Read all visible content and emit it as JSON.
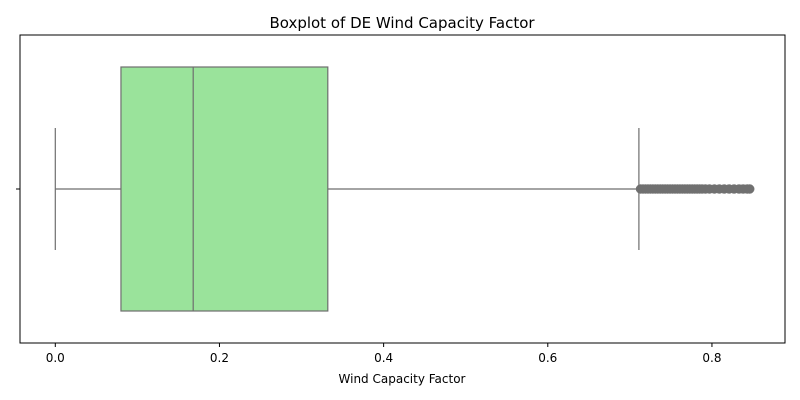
{
  "chart_data": {
    "type": "boxplot",
    "orientation": "horizontal",
    "title": "Boxplot of DE Wind Capacity Factor",
    "xlabel": "Wind Capacity Factor",
    "ylabel": "",
    "xlim": [
      -0.043,
      0.889
    ],
    "xticks": [
      0.0,
      0.2,
      0.4,
      0.6,
      0.8
    ],
    "xtick_labels": [
      "0.0",
      "0.2",
      "0.4",
      "0.6",
      "0.8"
    ],
    "grid": false,
    "box": {
      "whisker_low": 0.0,
      "q1": 0.08,
      "median": 0.168,
      "q3": 0.332,
      "whisker_high": 0.711
    },
    "outliers": [
      0.713,
      0.716,
      0.719,
      0.722,
      0.725,
      0.728,
      0.731,
      0.734,
      0.737,
      0.74,
      0.743,
      0.746,
      0.749,
      0.752,
      0.755,
      0.758,
      0.761,
      0.764,
      0.767,
      0.77,
      0.773,
      0.776,
      0.779,
      0.782,
      0.785,
      0.788,
      0.792,
      0.797,
      0.803,
      0.809,
      0.815,
      0.821,
      0.827,
      0.833,
      0.838,
      0.843,
      0.846
    ],
    "colors": {
      "box_fill": "#9ae39b",
      "lines": "#6e6e6e",
      "outlier": "#707070"
    }
  }
}
